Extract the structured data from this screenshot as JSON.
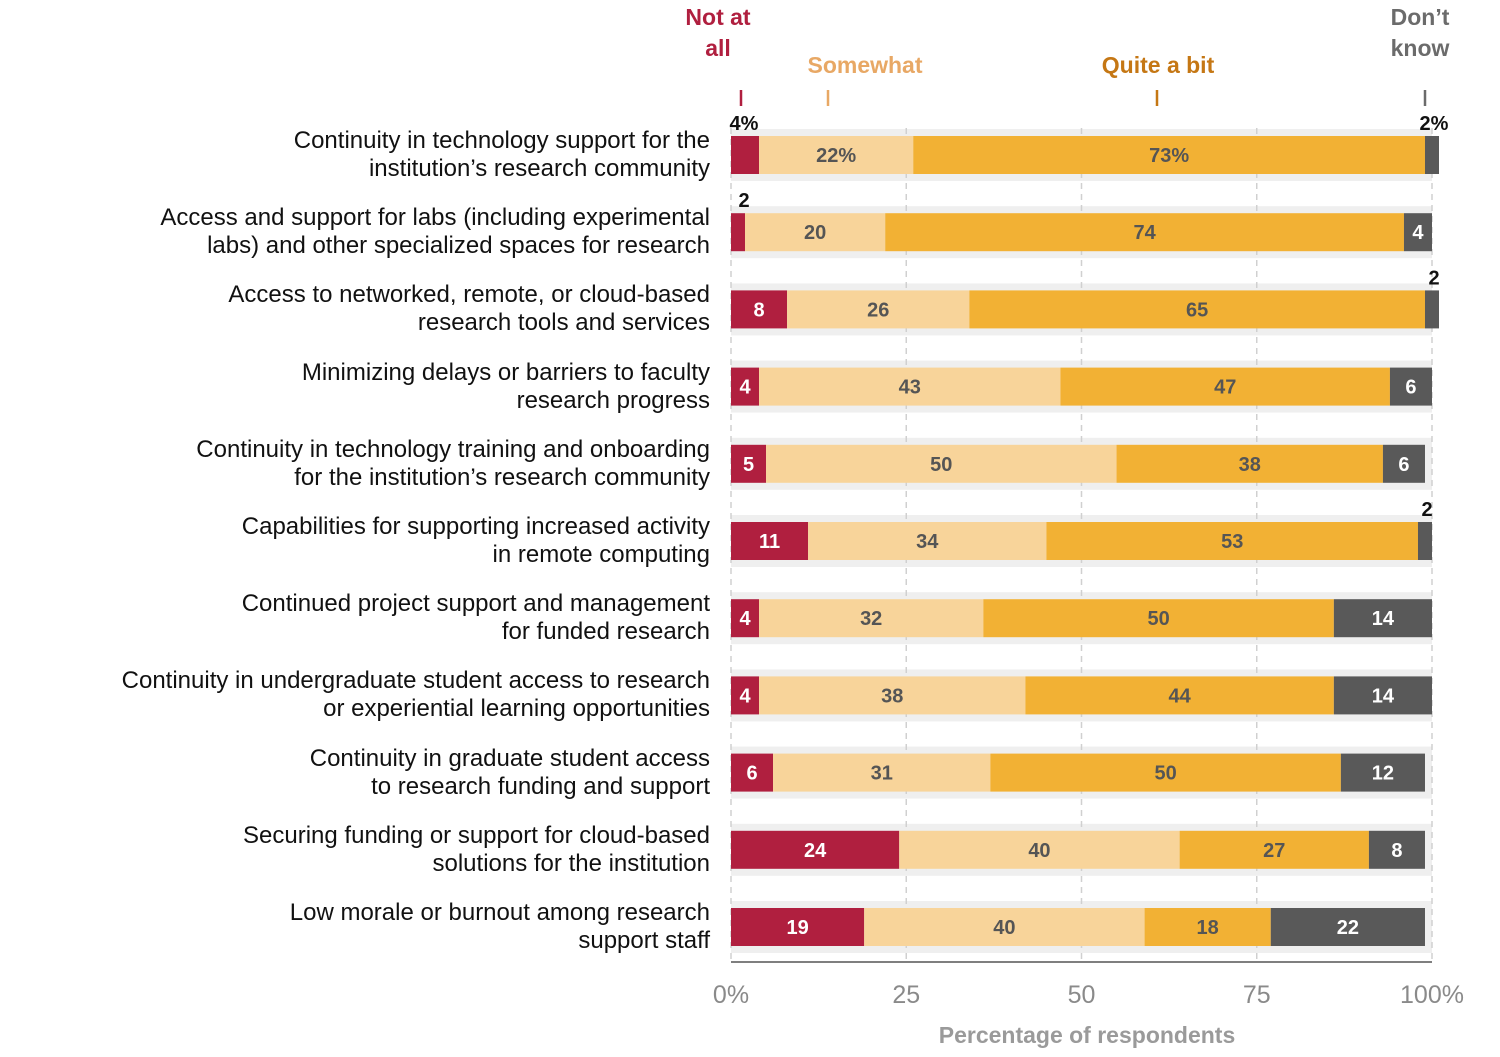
{
  "chart_data": {
    "type": "stacked_bar_horizontal",
    "x_label": "Percentage of respondents",
    "categories": [
      "Continuity in technology support for the\ninstitution’s research community",
      "Access and support for labs (including experimental\nlabs) and other specialized spaces for research",
      "Access to networked, remote, or cloud-based\nresearch tools and services",
      "Minimizing delays or barriers to faculty\nresearch progress",
      "Continuity in technology training and onboarding\nfor the institution’s research community",
      "Capabilities for supporting increased activity\nin remote computing",
      "Continued project support and management\nfor funded research",
      "Continuity in undergraduate student access to research\nor experiential learning opportunities",
      "Continuity in graduate student access\nto research funding and support",
      "Securing funding or support for cloud-based\nsolutions for the institution",
      "Low morale or burnout among research\nsupport staff"
    ],
    "series": [
      {
        "name": "Not at\nall",
        "color": "#b01f3f",
        "values": [
          4,
          2,
          8,
          4,
          5,
          11,
          4,
          4,
          6,
          24,
          19
        ],
        "value_labels": [
          "4%",
          "2",
          "8",
          "4",
          "5",
          "11",
          "4",
          "4",
          "6",
          "24",
          "19"
        ]
      },
      {
        "name": "Somewhat",
        "color": "#f8d49a",
        "values": [
          22,
          20,
          26,
          43,
          50,
          34,
          32,
          38,
          31,
          40,
          40
        ],
        "value_labels": [
          "22%",
          "20",
          "26",
          "43",
          "50",
          "34",
          "32",
          "38",
          "31",
          "40",
          "40"
        ]
      },
      {
        "name": "Quite a bit",
        "color": "#f2b134",
        "values": [
          73,
          74,
          65,
          47,
          38,
          53,
          50,
          44,
          50,
          27,
          18
        ],
        "value_labels": [
          "73%",
          "74",
          "65",
          "47",
          "38",
          "53",
          "50",
          "44",
          "50",
          "27",
          "18"
        ]
      },
      {
        "name": "Don’t\nknow",
        "color": "#595959",
        "values": [
          2,
          4,
          2,
          6,
          6,
          2,
          14,
          14,
          12,
          8,
          22
        ],
        "value_labels": [
          "2%",
          "4",
          "2",
          "6",
          "6",
          "2",
          "14",
          "14",
          "12",
          "8",
          "22"
        ]
      }
    ],
    "xlim": [
      0,
      100
    ],
    "xticks": [
      {
        "value": 0,
        "label": "0%"
      },
      25,
      50,
      75,
      {
        "value": 100,
        "label": "100%"
      }
    ],
    "grid": true
  }
}
